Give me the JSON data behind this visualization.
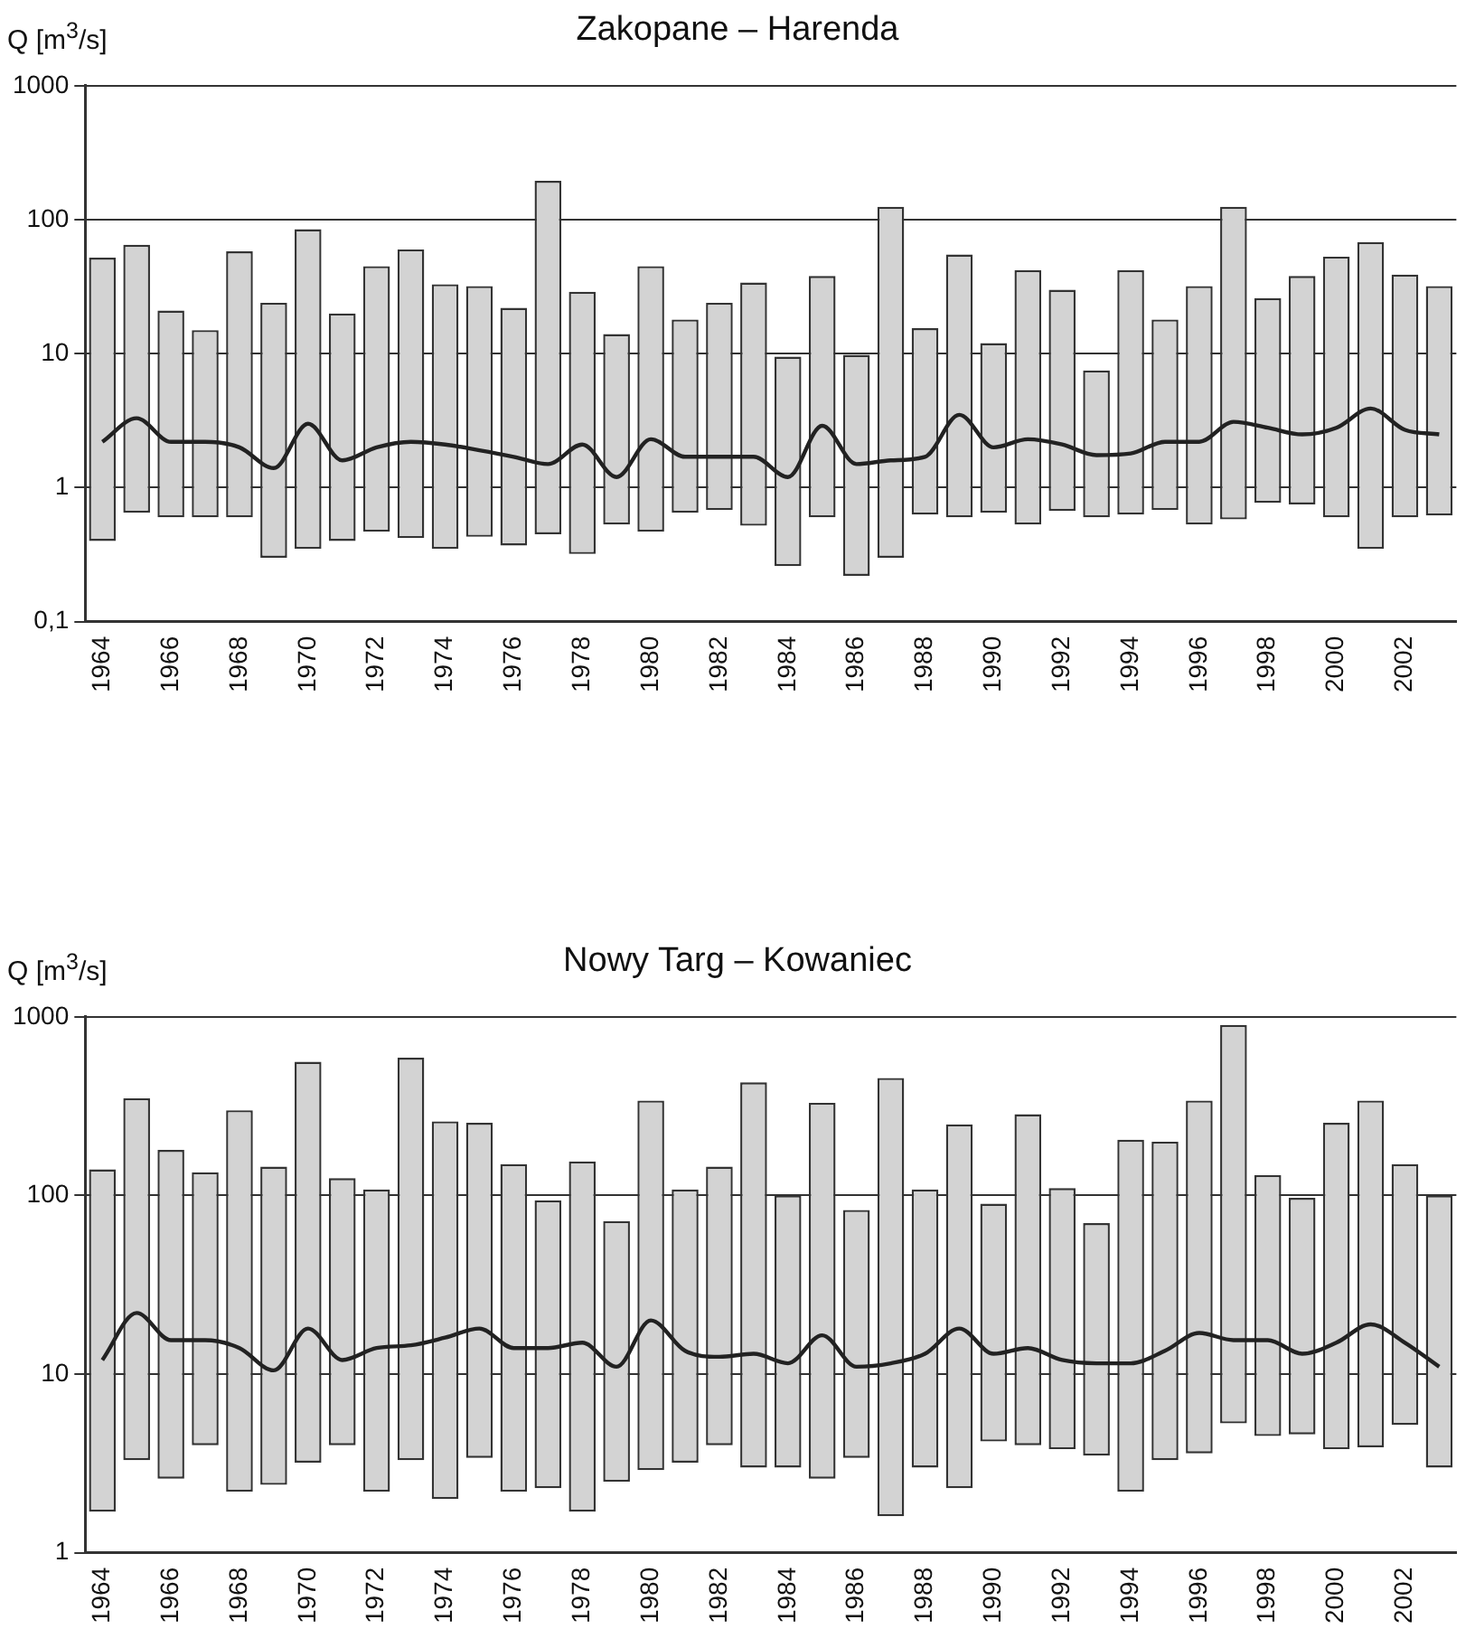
{
  "chart_data": [
    {
      "type": "bar",
      "title": "Zakopane – Harenda",
      "ylabel": "Q [m$^{3}$/s]",
      "log": true,
      "grid": "y",
      "legend": false,
      "categories": [
        "1964",
        null,
        "1966",
        null,
        "1968",
        null,
        "1970",
        null,
        "1972",
        null,
        "1974",
        null,
        "1976",
        null,
        "1978",
        null,
        "1980",
        null,
        "1982",
        null,
        "1984",
        null,
        "1986",
        null,
        "1988",
        null,
        "1990",
        null,
        "1992",
        null,
        "1994",
        null,
        "1996",
        null,
        "1998",
        null,
        "2000",
        null,
        "2002",
        null
      ],
      "ylim": [
        0.1,
        1000
      ],
      "yticks": [
        {
          "value": 0.1,
          "label": "0,1"
        },
        1,
        10,
        100,
        1000
      ],
      "series": [
        {
          "color": "#d3d3d3",
          "base": [
            0.4,
            0.65,
            0.6,
            0.6,
            0.6,
            0.3,
            0.35,
            0.4,
            0.47,
            0.42,
            0.35,
            0.43,
            0.37,
            0.45,
            0.32,
            0.53,
            0.47,
            0.65,
            0.68,
            0.52,
            0.26,
            0.6,
            0.22,
            0.3,
            0.63,
            0.6,
            0.65,
            0.53,
            0.67,
            0.6,
            0.63,
            0.68,
            0.53,
            0.58,
            0.77,
            0.75,
            0.6,
            0.35,
            0.6,
            0.62
          ],
          "values": [
            51.6,
            64.35,
            20.4,
            14.4,
            57.4,
            23.7,
            84.65,
            19.6,
            44.53,
            59.58,
            32.65,
            31.57,
            21.63,
            194.55,
            28.68,
            13.47,
            44.53,
            17.35,
            23.32,
            33.48,
            9.24,
            37.4,
            9.58,
            124.7,
            14.87,
            54.4,
            11.35,
            41.47,
            29.33,
            6.9,
            41.37,
            17.32,
            31.47,
            124.42,
            25.23,
            37.25,
            52.4,
            67.65,
            38.4,
            31.38
          ]
        },
        {
          "type": "line",
          "color": "#222222",
          "values": [
            2.2,
            3.3,
            2.2,
            2.2,
            2.0,
            1.4,
            3.0,
            1.6,
            2.0,
            2.2,
            2.1,
            1.9,
            1.7,
            1.5,
            2.1,
            1.2,
            2.3,
            1.7,
            1.7,
            1.7,
            1.2,
            2.9,
            1.5,
            1.6,
            1.7,
            3.5,
            2.0,
            2.3,
            2.1,
            1.75,
            1.8,
            2.2,
            2.2,
            3.1,
            2.8,
            2.5,
            2.8,
            3.9,
            2.7,
            2.5
          ]
        }
      ]
    },
    {
      "type": "bar",
      "title": "Nowy Targ – Kowaniec",
      "ylabel": "Q [m$^{3}$/s]",
      "log": true,
      "grid": "y",
      "legend": false,
      "categories": [
        "1964",
        null,
        "1966",
        null,
        "1968",
        null,
        "1970",
        null,
        "1972",
        null,
        "1974",
        null,
        "1976",
        null,
        "1978",
        null,
        "1980",
        null,
        "1982",
        null,
        "1984",
        null,
        "1986",
        null,
        "1988",
        null,
        "1990",
        null,
        "1992",
        null,
        "1994",
        null,
        "1996",
        null,
        "1998",
        null,
        "2000",
        null,
        "2002",
        null
      ],
      "ylim": [
        1,
        1000
      ],
      "yticks": [
        1,
        10,
        100,
        1000
      ],
      "series": [
        {
          "color": "#d3d3d3",
          "base": [
            1.7,
            3.3,
            2.6,
            4.0,
            2.2,
            2.4,
            3.2,
            4.0,
            2.2,
            3.3,
            2.0,
            3.4,
            2.2,
            2.3,
            1.7,
            2.5,
            2.9,
            3.2,
            4.0,
            3.0,
            3.0,
            2.6,
            3.4,
            1.6,
            3.0,
            2.3,
            4.2,
            4.0,
            3.8,
            3.5,
            2.2,
            3.3,
            3.6,
            5.3,
            4.5,
            4.6,
            3.8,
            3.9,
            5.2,
            3.0
          ],
          "values": [
            138.3,
            346.7,
            177.4,
            131,
            297.8,
            142.6,
            556.8,
            121,
            105.8,
            586.7,
            258,
            251.6,
            147.8,
            91.7,
            153.3,
            69.5,
            337.1,
            104.8,
            141,
            427,
            97,
            327.4,
            79.6,
            453.4,
            105,
            247.7,
            85.8,
            281,
            106.2,
            66.5,
            202.8,
            196.7,
            336.4,
            894.7,
            125.5,
            92.4,
            251.2,
            336.1,
            144.8,
            97
          ]
        },
        {
          "type": "line",
          "color": "#222222",
          "values": [
            12,
            22,
            15.5,
            15.5,
            14,
            10.5,
            18,
            12,
            14,
            14.5,
            16,
            18,
            14,
            14,
            15,
            11,
            20,
            13.5,
            12.5,
            13,
            11.5,
            16.5,
            11,
            11.5,
            13,
            18,
            13,
            14,
            12,
            11.5,
            11.5,
            13.5,
            17,
            15.5,
            15.5,
            13,
            15,
            19,
            15,
            11
          ]
        }
      ]
    }
  ]
}
